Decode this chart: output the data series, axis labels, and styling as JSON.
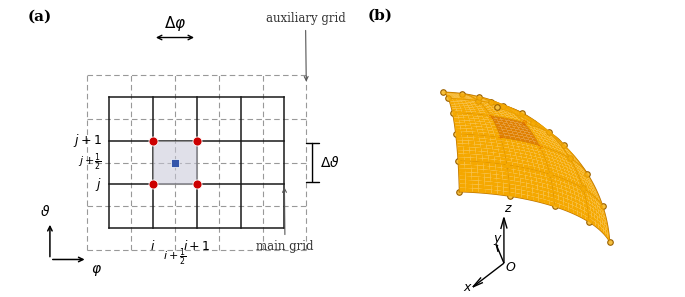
{
  "panel_a_label": "(a)",
  "panel_b_label": "(b)",
  "main_grid_color": "#1a1a1a",
  "aux_grid_color": "#999999",
  "shade_color": "#c8c8d8",
  "shade_alpha": 0.55,
  "red_dot_color": "#cc0000",
  "blue_square_color": "#3355aa",
  "sphere_face_color": "#f5a800",
  "highlight_cell_color": "#e08000",
  "sphere_edge_color": "#b87000",
  "dot_fill_color": "#f5c040",
  "dot_outline_color": "#9a6000",
  "red_dot_3d_color": "#cc2200",
  "delta_phi_label": "Δφ",
  "delta_theta_label": "Δϑ",
  "aux_grid_label": "auxiliary grid",
  "main_grid_label": "main grid",
  "n_theta": 5,
  "n_phi": 4,
  "theta_min_deg": 20,
  "theta_max_deg": 85,
  "phi_min_deg": 0,
  "phi_max_deg": 75,
  "hi_th": 2,
  "hi_ph": 2,
  "view_elev": 20,
  "view_azim": -100
}
